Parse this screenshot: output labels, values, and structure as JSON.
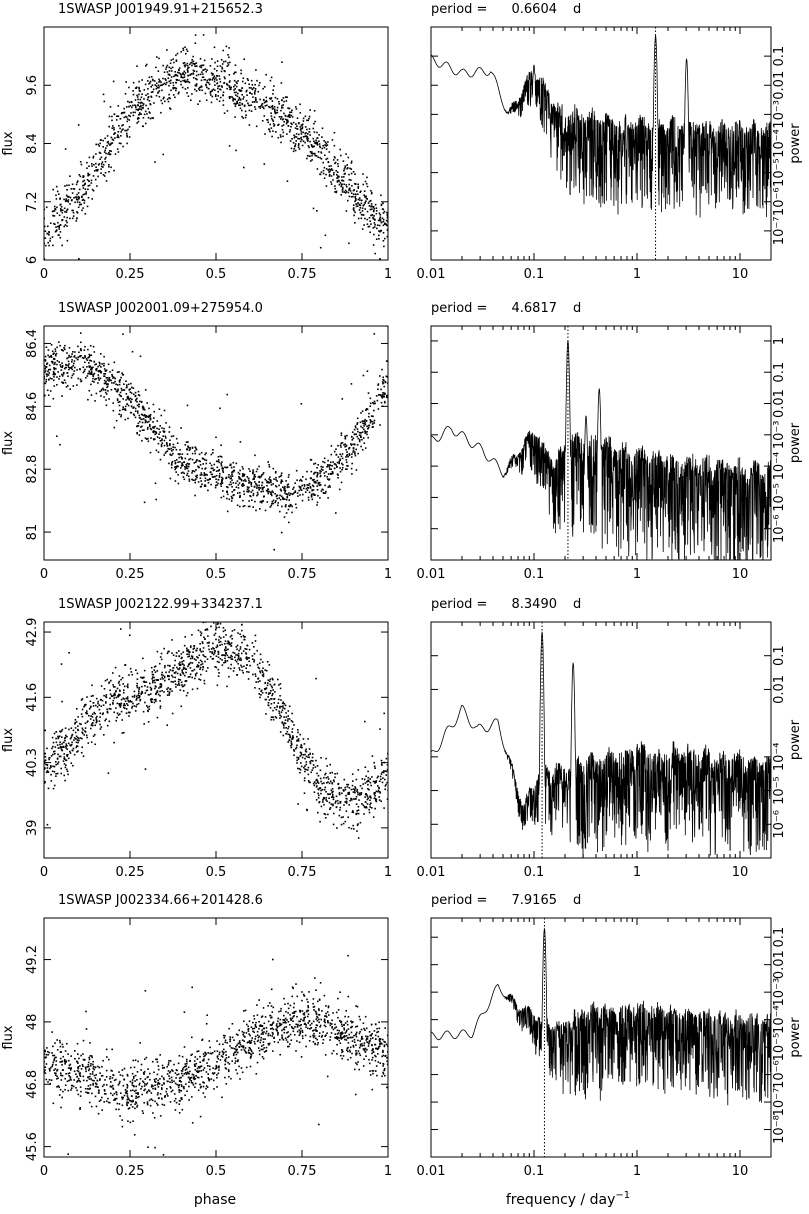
{
  "figure": {
    "xlabel_left": "phase",
    "xlabel_right": "frequency / day",
    "xlabel_right_exponent": "−1",
    "ylabel_left": "flux",
    "ylabel_right": "power",
    "period_prefix": "period ="
  },
  "chart_data": [
    {
      "type": "scatter",
      "title": "1SWASP J001949.91+215652.3",
      "xlabel": "phase",
      "ylabel": "flux",
      "xlim": [
        0,
        1
      ],
      "ylim": [
        6.0,
        10.8
      ],
      "xticks": [
        "0",
        "0.25",
        "0.5",
        "0.75",
        "1"
      ],
      "yticks": [
        6,
        7.2,
        8.4,
        9.6
      ],
      "yticklabels": [
        "6",
        "7.2",
        "8.4",
        "9.6"
      ],
      "curve": {
        "x": [
          0,
          0.1,
          0.2,
          0.3,
          0.4,
          0.5,
          0.6,
          0.7,
          0.8,
          0.9,
          1.0
        ],
        "y": [
          6.5,
          7.3,
          8.5,
          9.4,
          9.9,
          9.7,
          9.4,
          8.9,
          8.3,
          7.4,
          6.6
        ]
      },
      "scatter_spread": 0.45,
      "n_points": 1500,
      "seed": 11
    },
    {
      "type": "line",
      "title_prefix": "period =",
      "period": "0.6604",
      "period_unit": "d",
      "xlabel": "frequency / day^-1",
      "ylabel": "power",
      "xscale": "log",
      "yscale": "log",
      "xlim": [
        0.01,
        20
      ],
      "ylim": [
        1e-08,
        1
      ],
      "xticks": [
        0.01,
        0.1,
        1,
        10
      ],
      "xticklabels": [
        "0.01",
        "0.1",
        "1",
        "10"
      ],
      "yticks": [
        1e-07,
        1e-06,
        1e-05,
        0.0001,
        0.001,
        0.01,
        0.1
      ],
      "yticklabels": [
        "10⁻⁷",
        "10⁻⁶",
        "10⁻⁵",
        "10⁻⁴",
        "10⁻³",
        "0.01",
        "0.1"
      ],
      "period_freq": 1.514,
      "envelope": {
        "logf": [
          -2,
          -1.7,
          -1.42,
          -1.25,
          -1.0,
          -0.75,
          -0.5,
          -0.2,
          0.3,
          1.3
        ],
        "logp": [
          -1.1,
          -1.6,
          -1.5,
          -3.0,
          -1.5,
          -3.0,
          -3.2,
          -3.4,
          -3.5,
          -3.6
        ]
      },
      "peaks": [
        {
          "f": 1.514,
          "p": 0.5
        },
        {
          "f": 3.03,
          "p": 0.08
        },
        {
          "f": 0.1,
          "p": 0.05
        }
      ],
      "noise": 1.4,
      "seed": 21
    },
    {
      "type": "scatter",
      "title": "1SWASP J002001.09+275954.0",
      "xlabel": "phase",
      "ylabel": "flux",
      "xlim": [
        0,
        1
      ],
      "ylim": [
        80.2,
        86.9
      ],
      "xticks": [
        "0",
        "0.25",
        "0.5",
        "0.75",
        "1"
      ],
      "yticks": [
        81,
        82.8,
        84.6,
        86.4
      ],
      "yticklabels": [
        "81",
        "82.8",
        "84.6",
        "86.4"
      ],
      "curve": {
        "x": [
          0,
          0.1,
          0.2,
          0.3,
          0.4,
          0.5,
          0.6,
          0.7,
          0.8,
          0.9,
          1.0
        ],
        "y": [
          85.6,
          85.9,
          85.2,
          84.1,
          83.0,
          82.6,
          82.3,
          82.1,
          82.4,
          83.5,
          85.2
        ]
      },
      "scatter_spread": 0.55,
      "n_points": 1500,
      "seed": 12
    },
    {
      "type": "line",
      "title_prefix": "period =",
      "period": "4.6817",
      "period_unit": "d",
      "xlabel": "frequency / day^-1",
      "ylabel": "power",
      "xscale": "log",
      "yscale": "log",
      "xlim": [
        0.01,
        20
      ],
      "ylim": [
        1e-07,
        3
      ],
      "xticks": [
        0.01,
        0.1,
        1,
        10
      ],
      "xticklabels": [
        "0.01",
        "0.1",
        "1",
        "10"
      ],
      "yticks": [
        1e-06,
        1e-05,
        0.0001,
        0.001,
        0.01,
        0.1,
        1
      ],
      "yticklabels": [
        "10⁻⁶",
        "10⁻⁵",
        "10⁻⁴",
        "10⁻³",
        "0.01",
        "0.1",
        "1"
      ],
      "period_freq": 0.2136,
      "envelope": {
        "logf": [
          -2,
          -1.8,
          -1.5,
          -1.3,
          -1.0,
          -0.8,
          -0.65,
          -0.4,
          0,
          1.3
        ],
        "logp": [
          -3.2,
          -2.8,
          -3.5,
          -4.2,
          -2.9,
          -4.0,
          -3.3,
          -3.3,
          -3.8,
          -4.3
        ]
      },
      "peaks": [
        {
          "f": 0.2136,
          "p": 1.0
        },
        {
          "f": 0.43,
          "p": 0.03
        },
        {
          "f": 0.32,
          "p": 0.004
        }
      ],
      "noise": 1.5,
      "seed": 22
    },
    {
      "type": "scatter",
      "title": "1SWASP J002122.99+334237.1",
      "xlabel": "phase",
      "ylabel": "flux",
      "xlim": [
        0,
        1
      ],
      "ylim": [
        38.4,
        43.1
      ],
      "xticks": [
        "0",
        "0.25",
        "0.5",
        "0.75",
        "1"
      ],
      "yticks": [
        39,
        40.3,
        41.6,
        42.9
      ],
      "yticklabels": [
        "39",
        "40.3",
        "41.6",
        "42.9"
      ],
      "curve": {
        "x": [
          0,
          0.1,
          0.2,
          0.3,
          0.4,
          0.5,
          0.6,
          0.7,
          0.8,
          0.9,
          1.0
        ],
        "y": [
          40.2,
          40.9,
          41.6,
          41.7,
          42.1,
          42.6,
          42.4,
          41.1,
          39.8,
          39.5,
          39.9
        ]
      },
      "scatter_spread": 0.45,
      "n_points": 1500,
      "seed": 13
    },
    {
      "type": "line",
      "title_prefix": "period =",
      "period": "8.3490",
      "period_unit": "d",
      "xlabel": "frequency / day^-1",
      "ylabel": "power",
      "xscale": "log",
      "yscale": "log",
      "xlim": [
        0.01,
        20
      ],
      "ylim": [
        1e-07,
        1
      ],
      "xticks": [
        0.01,
        0.1,
        1,
        10
      ],
      "xticklabels": [
        "0.01",
        "0.1",
        "1",
        "10"
      ],
      "yticks": [
        1e-06,
        1e-05,
        0.0001,
        0.01,
        0.1
      ],
      "yticklabels": [
        "10⁻⁶",
        "10⁻⁵",
        "10⁻⁴",
        "0.01",
        "0.1"
      ],
      "period_freq": 0.1198,
      "envelope": {
        "logf": [
          -2,
          -1.7,
          -1.55,
          -1.35,
          -1.1,
          -0.95,
          -0.5,
          0,
          1.3
        ],
        "logp": [
          -4.0,
          -2.6,
          -3.2,
          -3.0,
          -5.5,
          -4.5,
          -4.3,
          -3.9,
          -4.3
        ]
      },
      "peaks": [
        {
          "f": 0.1198,
          "p": 0.5
        },
        {
          "f": 0.24,
          "p": 0.06
        }
      ],
      "noise": 1.3,
      "seed": 23
    },
    {
      "type": "scatter",
      "title": "1SWASP J002334.66+201428.6",
      "xlabel": "phase",
      "ylabel": "flux",
      "xlim": [
        0,
        1
      ],
      "ylim": [
        45.4,
        50.0
      ],
      "xticks": [
        "0",
        "0.25",
        "0.5",
        "0.75",
        "1"
      ],
      "yticks": [
        45.6,
        46.8,
        48,
        49.2
      ],
      "yticklabels": [
        "45.6",
        "46.8",
        "48",
        "49.2"
      ],
      "curve": {
        "x": [
          0,
          0.1,
          0.2,
          0.3,
          0.4,
          0.5,
          0.6,
          0.7,
          0.8,
          0.9,
          1.0
        ],
        "y": [
          47.2,
          47.0,
          46.7,
          46.7,
          46.9,
          47.2,
          47.6,
          48.0,
          48.0,
          47.7,
          47.4
        ]
      },
      "scatter_spread": 0.45,
      "n_points": 1500,
      "seed": 14
    },
    {
      "type": "line",
      "title_prefix": "period =",
      "period": "7.9165",
      "period_unit": "d",
      "xlabel": "frequency / day^-1",
      "ylabel": "power",
      "xscale": "log",
      "yscale": "log",
      "xlim": [
        0.01,
        20
      ],
      "ylim": [
        1e-09,
        0.5
      ],
      "xticks": [
        0.01,
        0.1,
        1,
        10
      ],
      "xticklabels": [
        "0.01",
        "0.1",
        "1",
        "10"
      ],
      "yticks": [
        1e-08,
        1e-07,
        1e-06,
        1e-05,
        0.0001,
        0.001,
        0.01,
        0.1
      ],
      "yticklabels": [
        "10⁻⁸",
        "10⁻⁷",
        "10⁻⁶",
        "10⁻⁵",
        "10⁻⁴",
        "10⁻³",
        "0.01",
        "0.1"
      ],
      "period_freq": 0.1263,
      "envelope": {
        "logf": [
          -2,
          -1.6,
          -1.35,
          -1.15,
          -0.95,
          -0.75,
          -0.5,
          0,
          1.3
        ],
        "logp": [
          -4.6,
          -4.5,
          -2.8,
          -3.5,
          -4.0,
          -4.4,
          -3.8,
          -3.7,
          -4.2
        ]
      },
      "peaks": [
        {
          "f": 0.1263,
          "p": 0.2
        }
      ],
      "noise": 1.4,
      "seed": 24
    }
  ]
}
